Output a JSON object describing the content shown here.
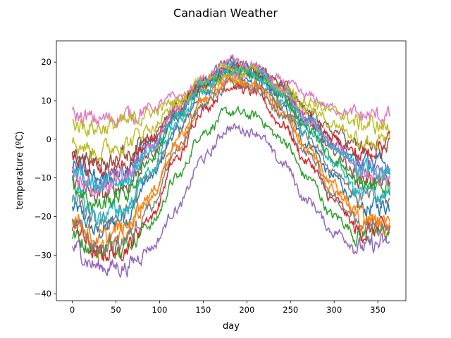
{
  "chart_data": {
    "type": "line",
    "title": "Canadian Weather",
    "xlabel": "day",
    "ylabel": "temperature (ºC)",
    "xlim": [
      -18.2,
      382.2
    ],
    "ylim": [
      -41.8,
      25.5
    ],
    "xticks": [
      0,
      50,
      100,
      150,
      200,
      250,
      300,
      350
    ],
    "yticks": [
      -40,
      -30,
      -20,
      -10,
      0,
      10,
      20
    ],
    "grid": false,
    "legend": "none",
    "colors": [
      "#1f77b4",
      "#ff7f0e",
      "#2ca02c",
      "#d62728",
      "#9467bd",
      "#8c564b",
      "#e377c2",
      "#7f7f7f",
      "#bcbd22",
      "#17becf"
    ],
    "sample_days": [
      0,
      30,
      60,
      90,
      120,
      150,
      180,
      210,
      240,
      270,
      300,
      330,
      364
    ],
    "series": [
      {
        "values": [
          -18,
          -24,
          -20,
          -10,
          2,
          12,
          17,
          15,
          8,
          -1,
          -10,
          -18,
          -17
        ]
      },
      {
        "values": [
          -20,
          -28,
          -25,
          -15,
          -2,
          10,
          15,
          14,
          6,
          -3,
          -12,
          -20,
          -20
        ]
      },
      {
        "values": [
          -25,
          -29,
          -27,
          -22,
          -10,
          2,
          7,
          6,
          0,
          -10,
          -20,
          -25,
          -24
        ]
      },
      {
        "values": [
          -22,
          -30,
          -28,
          -20,
          -5,
          8,
          14,
          12,
          4,
          -6,
          -16,
          -24,
          -23
        ]
      },
      {
        "values": [
          -28,
          -33,
          -33,
          -28,
          -18,
          -5,
          3,
          2,
          -6,
          -16,
          -24,
          -28,
          -27
        ]
      },
      {
        "values": [
          -11,
          -15,
          -12,
          -4,
          6,
          14,
          19,
          18,
          12,
          4,
          -3,
          -10,
          -11
        ]
      },
      {
        "values": [
          6,
          5,
          6,
          8,
          11,
          14,
          16,
          17,
          15,
          11,
          8,
          6,
          6
        ]
      },
      {
        "values": [
          -16,
          -22,
          -19,
          -9,
          3,
          13,
          17,
          16,
          9,
          1,
          -8,
          -15,
          -16
        ]
      },
      {
        "values": [
          4,
          3,
          4,
          7,
          10,
          14,
          16,
          16,
          14,
          10,
          7,
          4,
          3
        ]
      },
      {
        "values": [
          -14,
          -20,
          -18,
          -8,
          4,
          13,
          18,
          17,
          10,
          2,
          -6,
          -14,
          -14
        ]
      },
      {
        "values": [
          -7,
          -10,
          -8,
          -1,
          7,
          15,
          19,
          18,
          12,
          5,
          -1,
          -6,
          -7
        ]
      },
      {
        "values": [
          -20,
          -26,
          -23,
          -14,
          0,
          10,
          15,
          14,
          8,
          -2,
          -13,
          -21,
          -22
        ]
      },
      {
        "values": [
          -12,
          -17,
          -14,
          -5,
          6,
          14,
          18,
          17,
          11,
          3,
          -5,
          -12,
          -12
        ]
      },
      {
        "values": [
          -5,
          -8,
          -6,
          0,
          7,
          14,
          19,
          18,
          12,
          6,
          0,
          -4,
          0
        ]
      },
      {
        "values": [
          -8,
          -12,
          -9,
          -2,
          7,
          15,
          20,
          19,
          13,
          5,
          -2,
          -7,
          -8
        ]
      },
      {
        "values": [
          -3,
          -6,
          -4,
          1,
          8,
          15,
          20,
          19,
          14,
          7,
          2,
          -2,
          -3
        ]
      },
      {
        "values": [
          -10,
          -13,
          -10,
          -2,
          8,
          16,
          20,
          19,
          13,
          5,
          -2,
          -9,
          -10
        ]
      },
      {
        "values": [
          -22,
          -28,
          -26,
          -17,
          -3,
          9,
          14,
          13,
          6,
          -4,
          -15,
          -22,
          -21
        ]
      },
      {
        "values": [
          -1,
          -3,
          -1,
          3,
          9,
          15,
          19,
          18,
          13,
          8,
          4,
          0,
          -1
        ]
      },
      {
        "values": [
          -9,
          -12,
          -10,
          -3,
          6,
          14,
          19,
          18,
          12,
          5,
          -2,
          -8,
          -9
        ]
      }
    ]
  }
}
